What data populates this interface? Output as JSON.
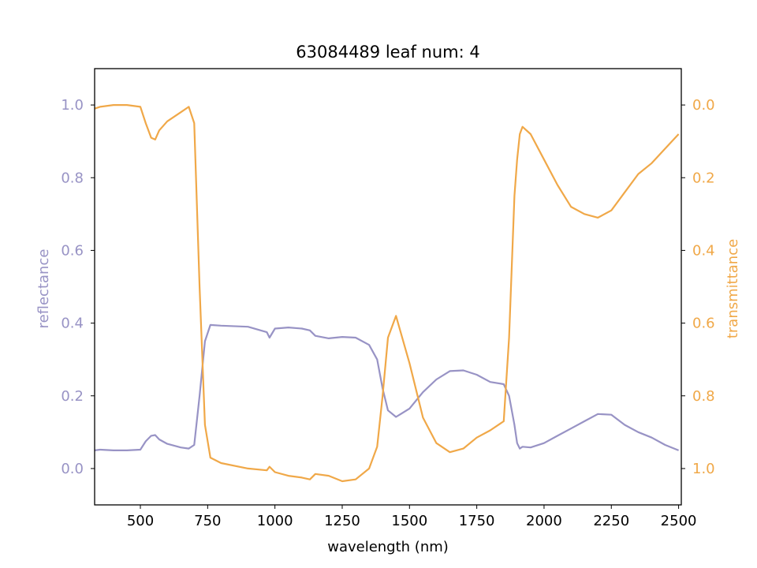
{
  "chart_data": {
    "type": "line",
    "title": "63084489 leaf num: 4",
    "xlabel": "wavelength (nm)",
    "ylabel_left": "reflectance",
    "ylabel_right": "transmittance",
    "xlim": [
      330,
      2510
    ],
    "ylim_left": [
      -0.1,
      1.1
    ],
    "ylim_right": [
      1.1,
      -0.1
    ],
    "x_ticks": [
      500,
      750,
      1000,
      1250,
      1500,
      1750,
      2000,
      2250,
      2500
    ],
    "x_tick_labels": [
      "500",
      "750",
      "1000",
      "1250",
      "1500",
      "1750",
      "2000",
      "2250",
      "2500"
    ],
    "y_left_ticks": [
      0.0,
      0.2,
      0.4,
      0.6,
      0.8,
      1.0
    ],
    "y_left_tick_labels": [
      "0.0",
      "0.2",
      "0.4",
      "0.6",
      "0.8",
      "1.0"
    ],
    "y_right_ticks": [
      0.0,
      0.2,
      0.4,
      0.6,
      0.8,
      1.0
    ],
    "y_right_tick_labels": [
      "0.0",
      "0.2",
      "0.4",
      "0.6",
      "0.8",
      "1.0"
    ],
    "grid": false,
    "legend": "none",
    "colors": {
      "reflectance": "#9893c5",
      "transmittance": "#f0a848"
    },
    "series": [
      {
        "axis": "left",
        "x": [
          330,
          350,
          400,
          450,
          500,
          520,
          540,
          555,
          570,
          600,
          650,
          680,
          700,
          720,
          740,
          760,
          800,
          900,
          970,
          980,
          1000,
          1050,
          1100,
          1130,
          1150,
          1200,
          1250,
          1300,
          1350,
          1380,
          1400,
          1420,
          1450,
          1500,
          1550,
          1600,
          1650,
          1700,
          1750,
          1800,
          1850,
          1870,
          1890,
          1900,
          1910,
          1920,
          1950,
          2000,
          2050,
          2100,
          2150,
          2200,
          2250,
          2300,
          2350,
          2400,
          2450,
          2500
        ],
        "y": [
          0.05,
          0.052,
          0.05,
          0.05,
          0.052,
          0.075,
          0.09,
          0.092,
          0.08,
          0.068,
          0.058,
          0.055,
          0.065,
          0.2,
          0.35,
          0.395,
          0.393,
          0.39,
          0.375,
          0.36,
          0.385,
          0.388,
          0.385,
          0.38,
          0.365,
          0.358,
          0.362,
          0.36,
          0.34,
          0.3,
          0.22,
          0.16,
          0.142,
          0.165,
          0.21,
          0.245,
          0.268,
          0.27,
          0.258,
          0.238,
          0.232,
          0.2,
          0.12,
          0.07,
          0.055,
          0.06,
          0.058,
          0.07,
          0.09,
          0.11,
          0.13,
          0.15,
          0.148,
          0.12,
          0.1,
          0.085,
          0.065,
          0.05
        ]
      },
      {
        "axis": "right",
        "x": [
          330,
          350,
          400,
          450,
          500,
          520,
          540,
          555,
          570,
          600,
          650,
          680,
          700,
          720,
          740,
          760,
          800,
          900,
          970,
          980,
          1000,
          1050,
          1100,
          1130,
          1150,
          1200,
          1250,
          1300,
          1350,
          1380,
          1400,
          1420,
          1450,
          1500,
          1550,
          1600,
          1650,
          1700,
          1750,
          1800,
          1850,
          1870,
          1890,
          1900,
          1910,
          1920,
          1950,
          2000,
          2050,
          2100,
          2150,
          2200,
          2250,
          2300,
          2350,
          2400,
          2450,
          2500
        ],
        "y": [
          0.01,
          0.005,
          0.0,
          0.0,
          0.005,
          0.05,
          0.09,
          0.095,
          0.07,
          0.045,
          0.02,
          0.005,
          0.05,
          0.5,
          0.88,
          0.97,
          0.985,
          1.0,
          1.005,
          0.995,
          1.01,
          1.02,
          1.025,
          1.03,
          1.015,
          1.02,
          1.035,
          1.03,
          1.0,
          0.94,
          0.8,
          0.64,
          0.58,
          0.71,
          0.86,
          0.93,
          0.955,
          0.945,
          0.915,
          0.895,
          0.87,
          0.64,
          0.25,
          0.15,
          0.08,
          0.06,
          0.08,
          0.15,
          0.22,
          0.28,
          0.3,
          0.31,
          0.29,
          0.24,
          0.19,
          0.16,
          0.12,
          0.08
        ]
      }
    ]
  }
}
